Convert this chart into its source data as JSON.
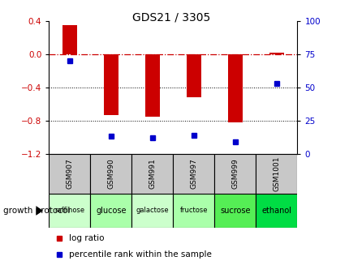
{
  "title": "GDS21 / 3305",
  "samples": [
    "GSM907",
    "GSM990",
    "GSM991",
    "GSM997",
    "GSM999",
    "GSM1001"
  ],
  "protocols": [
    "raffinose",
    "glucose",
    "galactose",
    "fructose",
    "sucrose",
    "ethanol"
  ],
  "log_ratios": [
    0.35,
    -0.73,
    -0.75,
    -0.52,
    -0.82,
    0.02
  ],
  "percentile_ranks": [
    70,
    13,
    12,
    14,
    9,
    53
  ],
  "ylim_left": [
    -1.2,
    0.4
  ],
  "ylim_right": [
    0,
    100
  ],
  "bar_color": "#CC0000",
  "dot_color": "#0000CC",
  "dashed_line_color": "#CC0000",
  "grid_color": "#000000",
  "protocol_colors": [
    "#ccffcc",
    "#aaffaa",
    "#ccffcc",
    "#aaffaa",
    "#55ee55",
    "#00dd44"
  ],
  "sample_bg_color": "#c8c8c8",
  "legend_log_ratio": "log ratio",
  "legend_percentile": "percentile rank within the sample",
  "growth_protocol_label": "growth protocol",
  "left_yticks": [
    -1.2,
    -0.8,
    -0.4,
    0,
    0.4
  ],
  "right_yticks": [
    0,
    25,
    50,
    75,
    100
  ]
}
